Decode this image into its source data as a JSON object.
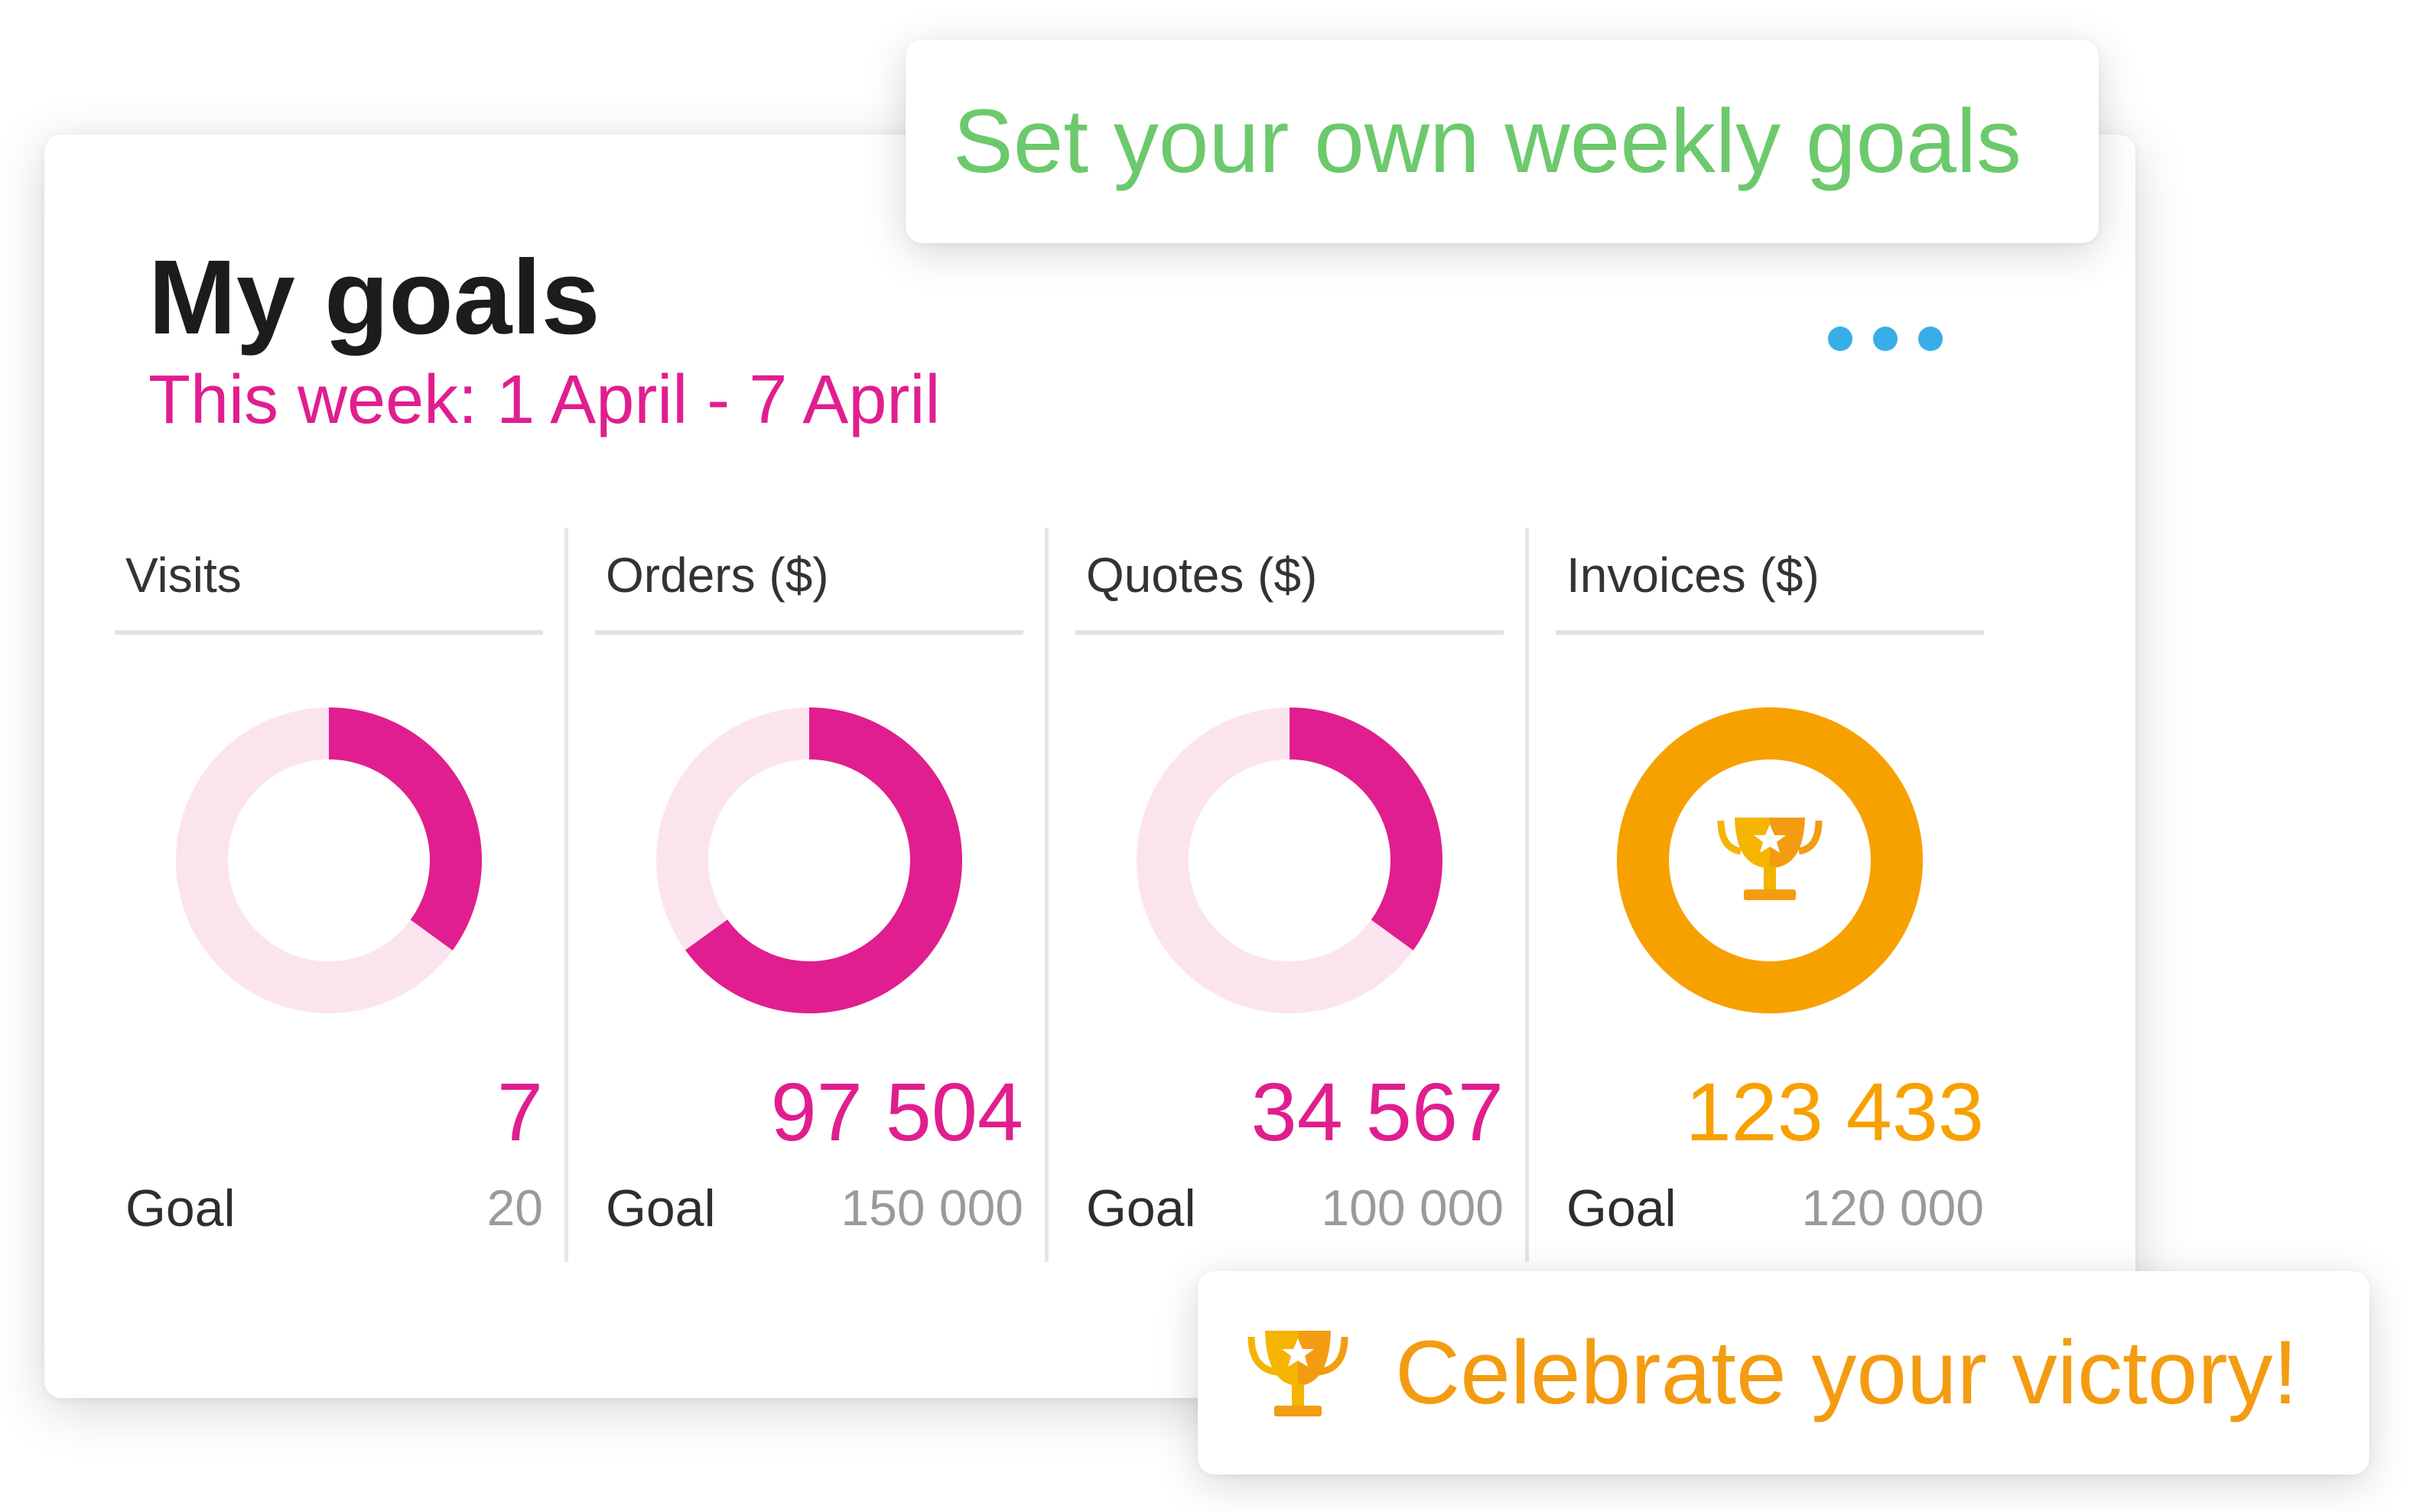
{
  "card": {
    "title": "My goals",
    "subtitle": "This week: 1 April - 7 April",
    "menu_icon": "more-horizontal-icon"
  },
  "metrics": [
    {
      "title": "Visits",
      "value": "7",
      "goal_label": "Goal",
      "goal": "20",
      "progress": 0.35,
      "achieved": false
    },
    {
      "title": "Orders ($)",
      "value": "97 504",
      "goal_label": "Goal",
      "goal": "150 000",
      "progress": 0.65,
      "achieved": false
    },
    {
      "title": "Quotes ($)",
      "value": "34 567",
      "goal_label": "Goal",
      "goal": "100 000",
      "progress": 0.35,
      "achieved": false
    },
    {
      "title": "Invoices ($)",
      "value": "123 433",
      "goal_label": "Goal",
      "goal": "120 000",
      "progress": 1.0,
      "achieved": true,
      "icon": "trophy-icon"
    }
  ],
  "callouts": {
    "top": "Set your own weekly goals",
    "bottom": "Celebrate your victory!",
    "bottom_icon": "trophy-icon"
  },
  "colors": {
    "accent_pink": "#e01e8f",
    "ring_track_pink": "#fce4ef",
    "achieved_orange": "#f7a100",
    "callout_green": "#6cc96c",
    "callout_orange": "#f39c12",
    "menu_blue": "#37aee8",
    "trophy_gold": "#f5b400",
    "trophy_orange": "#f39c12"
  }
}
